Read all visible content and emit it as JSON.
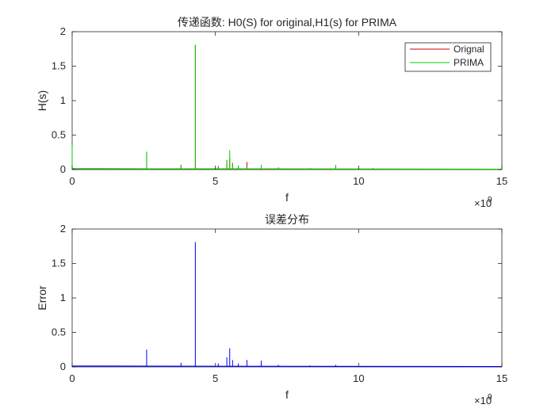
{
  "chart_data": [
    {
      "type": "line",
      "title": "传递函数: H0(S) for original,H1(s) for PRIMA",
      "xlabel": "f",
      "ylabel": "H(s)",
      "x_exponent_label": "×10",
      "x_exponent_power": "9",
      "xlim": [
        0,
        15
      ],
      "ylim": [
        0,
        2
      ],
      "xticks": [
        "0",
        "5",
        "10",
        "15"
      ],
      "yticks": [
        "0",
        "0.5",
        "1",
        "1.5",
        "2"
      ],
      "grid": false,
      "legend_position": "top-right",
      "series": [
        {
          "name": "Orignal",
          "color": "#d40000",
          "x": [
            0.0,
            0.05,
            2.6,
            3.8,
            4.3,
            5.1,
            5.4,
            5.5,
            5.6,
            5.8,
            6.1,
            6.6,
            7.2,
            8.3,
            9.2,
            10.5,
            15.0
          ],
          "values": [
            0.35,
            0.02,
            0.25,
            0.06,
            1.8,
            0.05,
            0.13,
            0.16,
            0.09,
            0.05,
            0.11,
            0.03,
            0.03,
            0.02,
            0.05,
            0.02,
            0.0
          ]
        },
        {
          "name": "PRIMA",
          "color": "#00cc00",
          "x": [
            0.0,
            0.05,
            2.6,
            3.8,
            4.3,
            5.1,
            5.4,
            5.5,
            5.6,
            5.8,
            6.1,
            6.6,
            7.2,
            8.3,
            9.2,
            10.5,
            15.0
          ],
          "values": [
            0.35,
            0.02,
            0.26,
            0.07,
            1.81,
            0.05,
            0.14,
            0.28,
            0.1,
            0.06,
            0.04,
            0.07,
            0.03,
            0.02,
            0.07,
            0.02,
            0.0
          ]
        }
      ]
    },
    {
      "type": "line",
      "title": "误差分布",
      "xlabel": "f",
      "ylabel": "Error",
      "x_exponent_label": "×10",
      "x_exponent_power": "9",
      "xlim": [
        0,
        15
      ],
      "ylim": [
        0,
        2
      ],
      "xticks": [
        "0",
        "5",
        "10",
        "15"
      ],
      "yticks": [
        "0",
        "0.5",
        "1",
        "1.5",
        "2"
      ],
      "grid": false,
      "series": [
        {
          "color": "#0000ff",
          "x": [
            0.0,
            0.05,
            2.6,
            3.8,
            4.3,
            5.1,
            5.4,
            5.5,
            5.6,
            5.8,
            6.1,
            6.6,
            7.2,
            8.3,
            9.2,
            10.5,
            15.0
          ],
          "values": [
            0.02,
            0.01,
            0.25,
            0.06,
            1.81,
            0.05,
            0.14,
            0.27,
            0.1,
            0.05,
            0.1,
            0.09,
            0.03,
            0.02,
            0.03,
            0.01,
            0.0
          ]
        }
      ]
    }
  ]
}
